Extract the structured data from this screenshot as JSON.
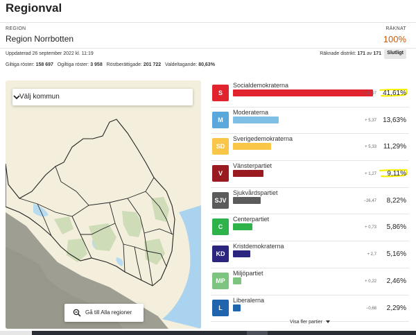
{
  "page": {
    "title": "Regionval"
  },
  "region": {
    "label": "REGION",
    "name": "Region Norrbotten",
    "counted_label": "RÄKNAT",
    "counted_pct": "100%"
  },
  "status": {
    "updated": "Uppdaterad 26 september 2022 kl. 11:19",
    "districts_prefix": "Räknade distrikt: ",
    "districts_counted": "171",
    "districts_sep": " av ",
    "districts_total": "171",
    "final_badge": "Slutligt"
  },
  "stats": [
    {
      "label": "Giltiga röster: ",
      "value": "158 697"
    },
    {
      "label": "Ogiltiga röster: ",
      "value": "3 958"
    },
    {
      "label": "Röstberättigade: ",
      "value": "201 722"
    },
    {
      "label": "Valdeltagande: ",
      "value": "80,63%"
    }
  ],
  "map": {
    "kommun_select": "Välj kommun",
    "all_regions_button": "Gå till Alla regioner",
    "colors": {
      "land": "#f3efdc",
      "forest": "#cfdcb8",
      "neighbor": "#9f9e92",
      "sea": "#a9d3ee",
      "lake": "#b7dcf2",
      "border": "#222222"
    }
  },
  "parties": [
    {
      "abbr": "S",
      "name": "Socialdemokraterna",
      "change": "+ 11,97",
      "pct": "41,61%",
      "share": 41.61,
      "color": "#e0232d",
      "highlighted": true
    },
    {
      "abbr": "M",
      "name": "Moderaterna",
      "change": "+ 5,37",
      "pct": "13,63%",
      "share": 13.63,
      "color": "#7fbfe5",
      "badge_color": "#5aa7dc",
      "highlighted": false
    },
    {
      "abbr": "SD",
      "name": "Sverigedemokraterna",
      "change": "+ 5,33",
      "pct": "11,29%",
      "share": 11.29,
      "color": "#f9c647",
      "highlighted": false
    },
    {
      "abbr": "V",
      "name": "Vänsterpartiet",
      "change": "+ 1,27",
      "pct": "9,11%",
      "share": 9.11,
      "color": "#9a1a22",
      "highlighted": true
    },
    {
      "abbr": "SJV",
      "name": "Sjukvårdspartiet",
      "change": "−26,47",
      "pct": "8,22%",
      "share": 8.22,
      "color": "#5b5b5b",
      "highlighted": false
    },
    {
      "abbr": "C",
      "name": "Centerpartiet",
      "change": "+ 0,73",
      "pct": "5,86%",
      "share": 5.86,
      "color": "#2eb34a",
      "highlighted": false
    },
    {
      "abbr": "KD",
      "name": "Kristdemokraterna",
      "change": "+ 2,7",
      "pct": "5,16%",
      "share": 5.16,
      "color": "#2b2580",
      "highlighted": false
    },
    {
      "abbr": "MP",
      "name": "Miljöpartiet",
      "change": "+ 0,22",
      "pct": "2,46%",
      "share": 2.46,
      "color": "#7cc47f",
      "highlighted": false
    },
    {
      "abbr": "L",
      "name": "Liberalerna",
      "change": "−0,68",
      "pct": "2,29%",
      "share": 2.29,
      "color": "#1f64ac",
      "highlighted": false
    }
  ],
  "more_parties": "Visa fler partier",
  "highlight_color": "#f7f000"
}
